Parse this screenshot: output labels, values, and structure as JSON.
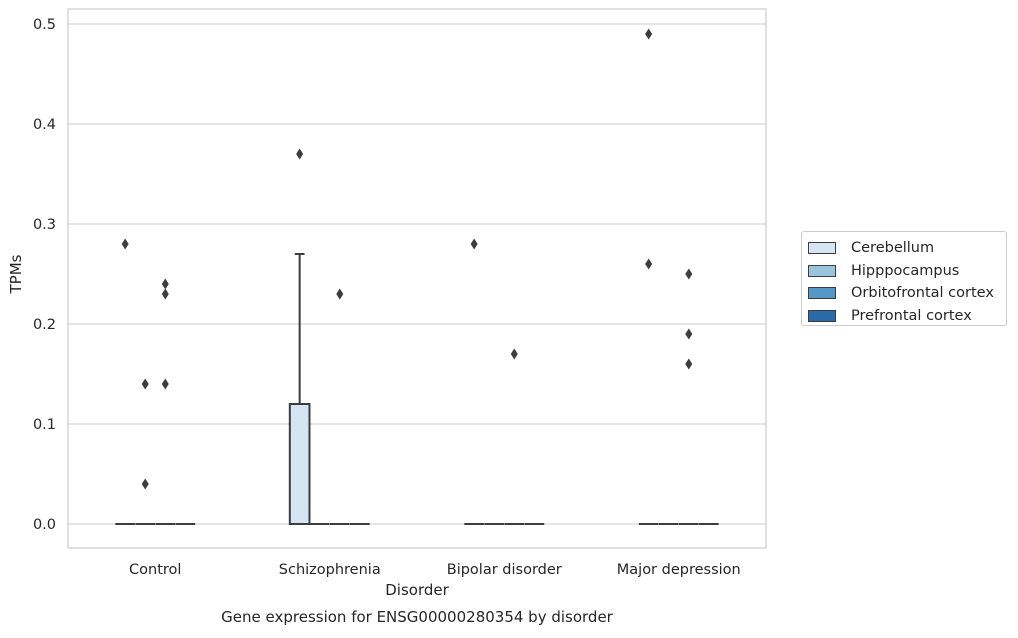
{
  "chart_data": {
    "type": "box",
    "title": "",
    "caption": "Gene expression for ENSG00000280354 by disorder",
    "xlabel": "Disorder",
    "ylabel": "TPMs",
    "ylim": [
      -0.024,
      0.515
    ],
    "yticks": [
      "0.0",
      "0.1",
      "0.2",
      "0.3",
      "0.4",
      "0.5"
    ],
    "grid": true,
    "legend_placement": "right",
    "categories": [
      "Control",
      "Schizophrenia",
      "Bipolar disorder",
      "Major depression"
    ],
    "series": [
      {
        "name": "Cerebellum",
        "color": "#d6e5f3",
        "boxes": [
          {
            "q1": 0,
            "median": 0,
            "q3": 0,
            "whisker_low": 0,
            "whisker_high": 0,
            "outliers": [
              0.28
            ]
          },
          {
            "q1": 0,
            "median": 0,
            "q3": 0.12,
            "whisker_low": 0,
            "whisker_high": 0.27,
            "outliers": [
              0.37
            ]
          },
          {
            "q1": 0,
            "median": 0,
            "q3": 0,
            "whisker_low": 0,
            "whisker_high": 0,
            "outliers": [
              0.28
            ]
          },
          {
            "q1": 0,
            "median": 0,
            "q3": 0,
            "whisker_low": 0,
            "whisker_high": 0,
            "outliers": [
              0.49,
              0.26
            ]
          }
        ]
      },
      {
        "name": "Hipppocampus",
        "color": "#9ac4de",
        "boxes": [
          {
            "q1": 0,
            "median": 0,
            "q3": 0,
            "whisker_low": 0,
            "whisker_high": 0,
            "outliers": [
              0.14,
              0.04
            ]
          },
          {
            "q1": 0,
            "median": 0,
            "q3": 0,
            "whisker_low": 0,
            "whisker_high": 0,
            "outliers": []
          },
          {
            "q1": 0,
            "median": 0,
            "q3": 0,
            "whisker_low": 0,
            "whisker_high": 0,
            "outliers": []
          },
          {
            "q1": 0,
            "median": 0,
            "q3": 0,
            "whisker_low": 0,
            "whisker_high": 0,
            "outliers": []
          }
        ]
      },
      {
        "name": "Orbitofrontal cortex",
        "color": "#5597c6",
        "boxes": [
          {
            "q1": 0,
            "median": 0,
            "q3": 0,
            "whisker_low": 0,
            "whisker_high": 0,
            "outliers": [
              0.24,
              0.23,
              0.14
            ]
          },
          {
            "q1": 0,
            "median": 0,
            "q3": 0,
            "whisker_low": 0,
            "whisker_high": 0,
            "outliers": [
              0.23
            ]
          },
          {
            "q1": 0,
            "median": 0,
            "q3": 0,
            "whisker_low": 0,
            "whisker_high": 0,
            "outliers": [
              0.17
            ]
          },
          {
            "q1": 0,
            "median": 0,
            "q3": 0,
            "whisker_low": 0,
            "whisker_high": 0,
            "outliers": [
              0.25,
              0.19,
              0.16
            ]
          }
        ]
      },
      {
        "name": "Prefrontal cortex",
        "color": "#2b6aa8",
        "boxes": [
          {
            "q1": 0,
            "median": 0,
            "q3": 0,
            "whisker_low": 0,
            "whisker_high": 0,
            "outliers": []
          },
          {
            "q1": 0,
            "median": 0,
            "q3": 0,
            "whisker_low": 0,
            "whisker_high": 0,
            "outliers": []
          },
          {
            "q1": 0,
            "median": 0,
            "q3": 0,
            "whisker_low": 0,
            "whisker_high": 0,
            "outliers": []
          },
          {
            "q1": 0,
            "median": 0,
            "q3": 0,
            "whisker_low": 0,
            "whisker_high": 0,
            "outliers": []
          }
        ]
      }
    ]
  }
}
